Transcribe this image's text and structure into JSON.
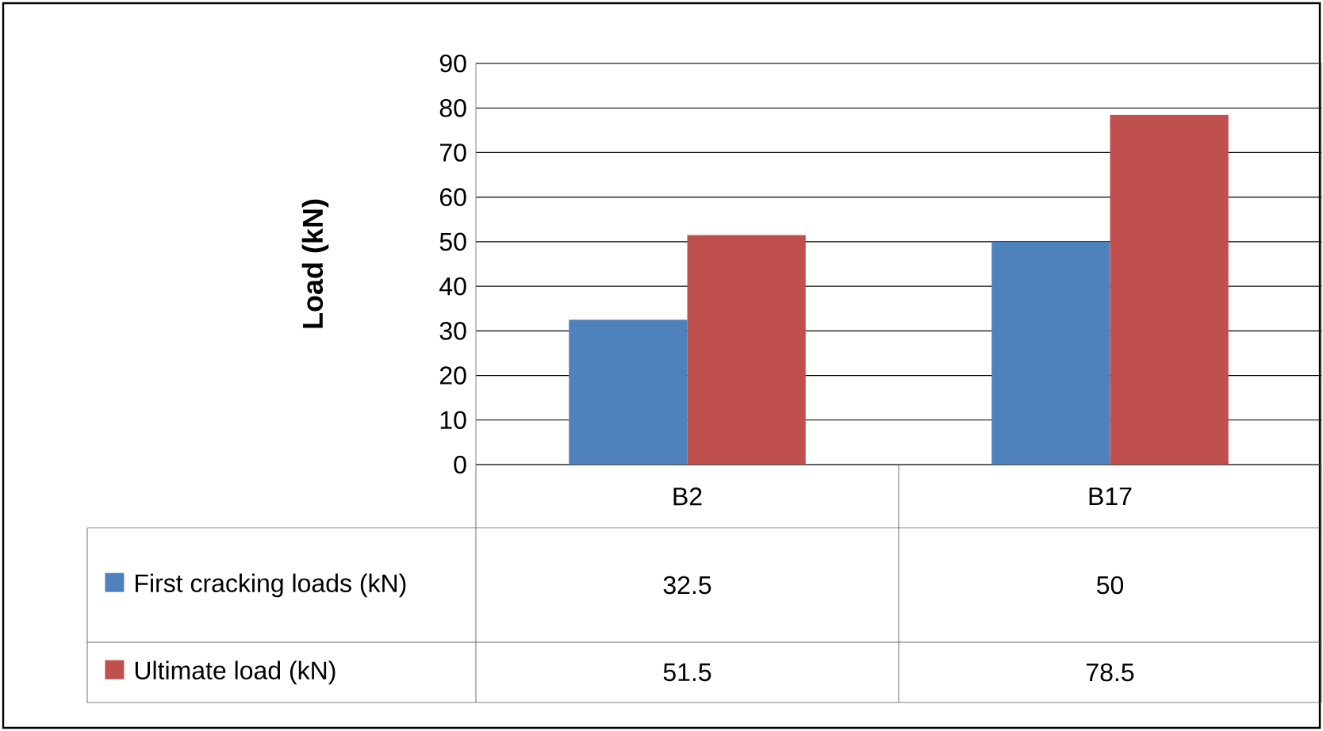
{
  "chart_data": {
    "type": "bar",
    "ylabel": "Load (kN)",
    "categories": [
      "B2",
      "B17"
    ],
    "series": [
      {
        "name": "First cracking loads (kN)",
        "color": "#4f81bd",
        "values": [
          32.5,
          50
        ]
      },
      {
        "name": "Ultimate load (kN)",
        "color": "#c0504d",
        "values": [
          51.5,
          78.5
        ]
      }
    ],
    "ylim": [
      0,
      90
    ],
    "yticks": [
      0,
      10,
      20,
      30,
      40,
      50,
      60,
      70,
      80,
      90
    ],
    "grid": "y",
    "legend": "bottom",
    "data_labels": true
  }
}
